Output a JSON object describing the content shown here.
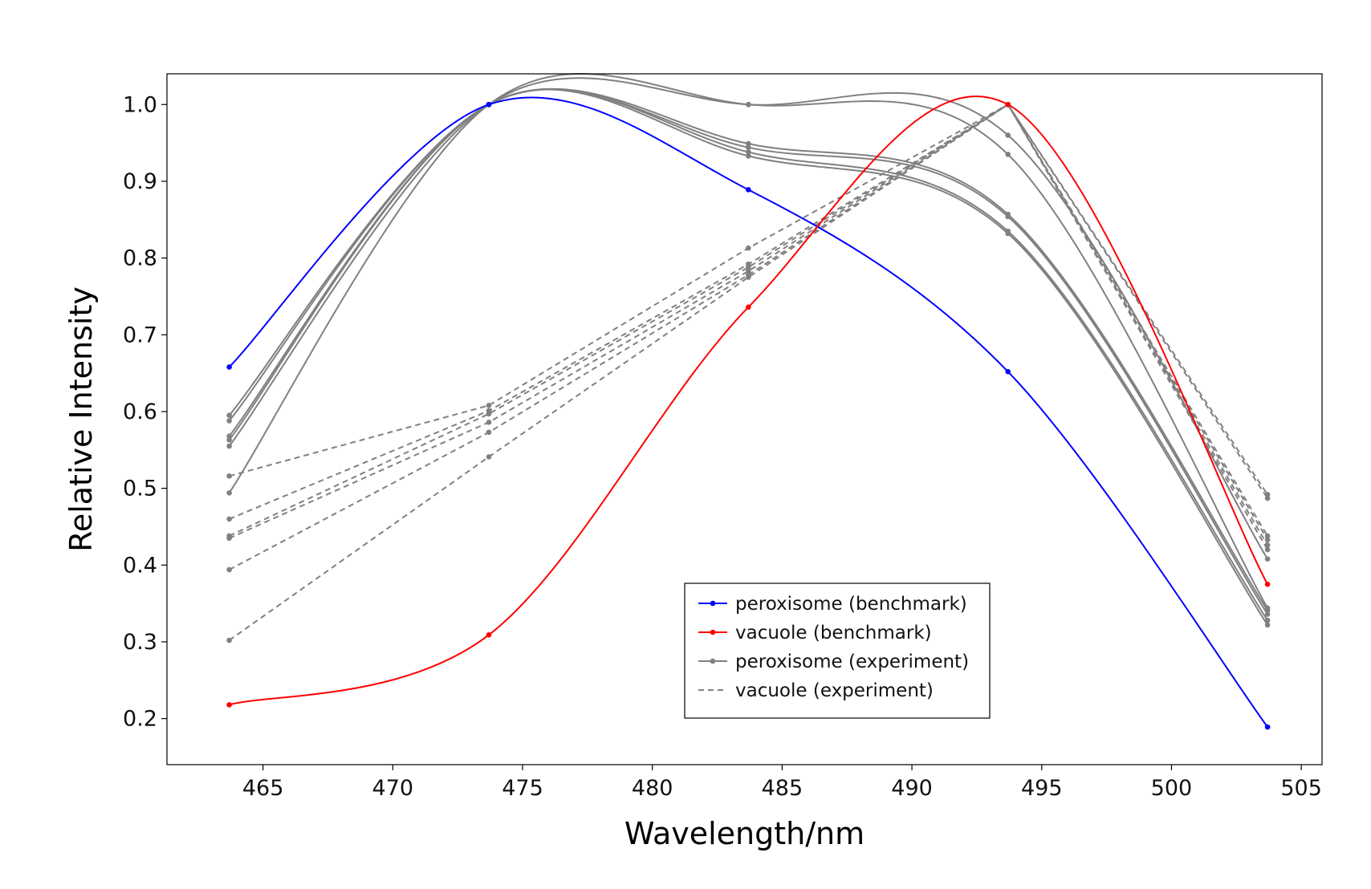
{
  "chart_data": {
    "type": "line",
    "title": "",
    "xlabel": "Wavelength/nm",
    "ylabel": "Relative Intensity",
    "xlim": [
      461.3,
      505.8
    ],
    "ylim": [
      0.14,
      1.04
    ],
    "xticks": [
      465,
      470,
      475,
      480,
      485,
      490,
      495,
      500,
      505
    ],
    "yticks": [
      0.2,
      0.3,
      0.4,
      0.5,
      0.6,
      0.7,
      0.8,
      0.9,
      1.0
    ],
    "grid": false,
    "legend_position": "lower-center",
    "x": [
      463.7,
      473.7,
      483.7,
      493.7,
      503.7
    ],
    "series": [
      {
        "name": "peroxisome (benchmark)",
        "color": "#0000ff",
        "style": "solid",
        "values": [
          0.658,
          1.0,
          0.889,
          0.652,
          0.189
        ]
      },
      {
        "name": "vacuole (benchmark)",
        "color": "#ff0000",
        "style": "solid",
        "values": [
          0.218,
          0.309,
          0.736,
          1.0,
          0.375
        ]
      },
      {
        "name": "peroxisome (experiment)",
        "color": "#808080",
        "style": "solid",
        "values": [
          0.595,
          1.0,
          0.949,
          0.857,
          0.341
        ]
      },
      {
        "name": "",
        "color": "#808080",
        "style": "solid",
        "values": [
          0.588,
          1.0,
          0.944,
          0.854,
          0.336
        ]
      },
      {
        "name": "",
        "color": "#808080",
        "style": "solid",
        "values": [
          0.568,
          1.0,
          0.938,
          0.835,
          0.328
        ]
      },
      {
        "name": "",
        "color": "#808080",
        "style": "solid",
        "values": [
          0.563,
          1.0,
          0.933,
          0.832,
          0.322
        ]
      },
      {
        "name": "",
        "color": "#808080",
        "style": "solid",
        "values": [
          0.555,
          1.0,
          1.0,
          0.96,
          0.408
        ]
      },
      {
        "name": "",
        "color": "#808080",
        "style": "solid",
        "values": [
          0.494,
          1.0,
          1.0,
          0.935,
          0.344
        ]
      },
      {
        "name": "vacuole (experiment)",
        "color": "#808080",
        "style": "dashed",
        "values": [
          0.516,
          0.608,
          0.813,
          1.0,
          0.492
        ]
      },
      {
        "name": "",
        "color": "#808080",
        "style": "dashed",
        "values": [
          0.46,
          0.601,
          0.792,
          1.0,
          0.487
        ]
      },
      {
        "name": "",
        "color": "#808080",
        "style": "dashed",
        "values": [
          0.438,
          0.597,
          0.788,
          1.0,
          0.438
        ]
      },
      {
        "name": "",
        "color": "#808080",
        "style": "dashed",
        "values": [
          0.435,
          0.586,
          0.783,
          1.0,
          0.433
        ]
      },
      {
        "name": "",
        "color": "#808080",
        "style": "dashed",
        "values": [
          0.394,
          0.573,
          0.778,
          1.0,
          0.426
        ]
      },
      {
        "name": "",
        "color": "#808080",
        "style": "dashed",
        "values": [
          0.302,
          0.541,
          0.775,
          1.0,
          0.42
        ]
      }
    ]
  }
}
